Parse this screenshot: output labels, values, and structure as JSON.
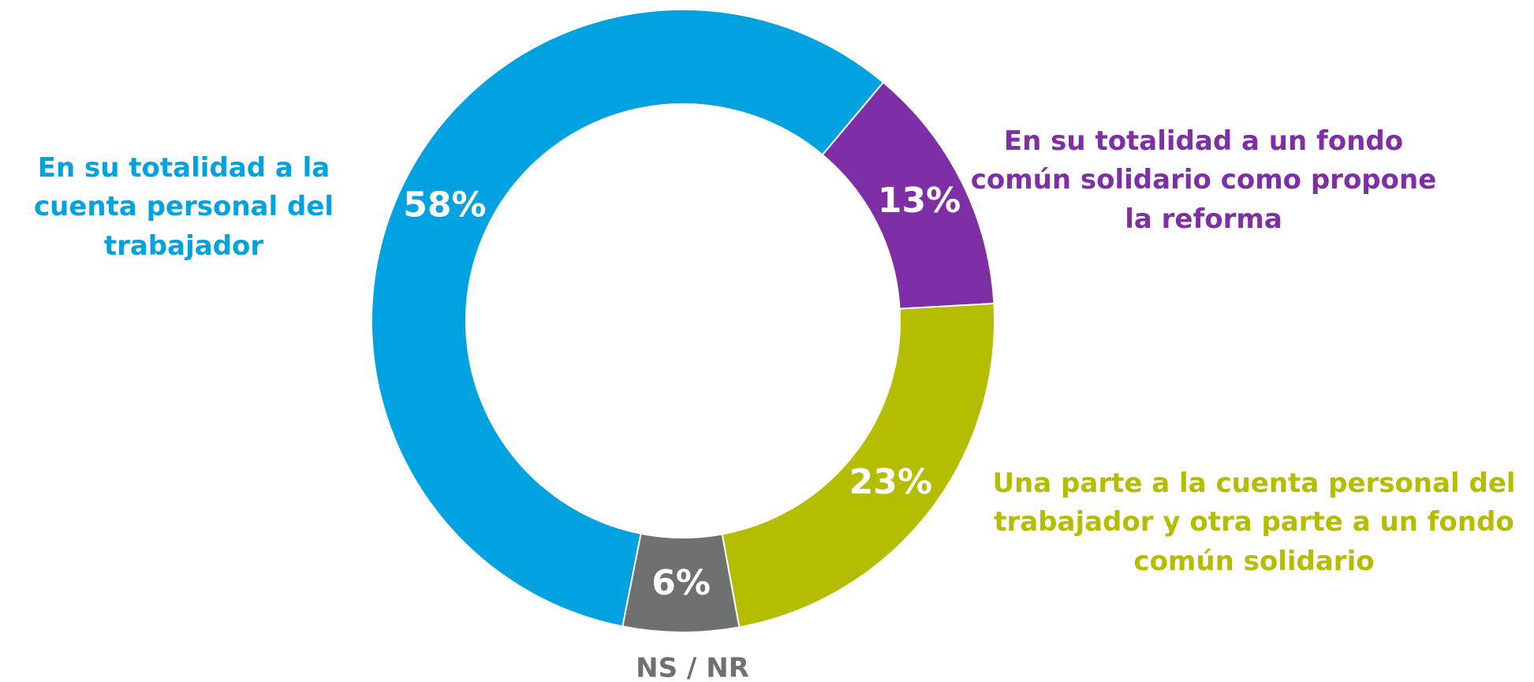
{
  "chart_data": {
    "type": "donut",
    "categories": [
      "En su totalidad a un fondo común solidario como propone la reforma",
      "Una parte a la cuenta personal del trabajador y otra parte a un fondo común solidario",
      "NS / NR",
      "En su totalidad a la cuenta personal del trabajador"
    ],
    "values": [
      13,
      23,
      6,
      58
    ],
    "value_labels": [
      "13%",
      "23%",
      "6%",
      "58%"
    ],
    "colors": [
      "#7f2fa6",
      "#b5bd00",
      "#6f7070",
      "#00a3e0"
    ]
  }
}
